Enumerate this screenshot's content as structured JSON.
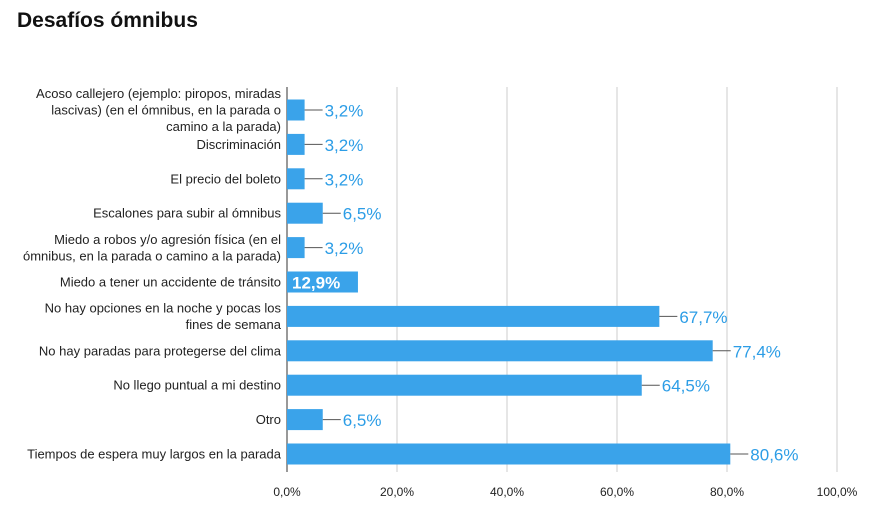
{
  "chart_data": {
    "type": "bar",
    "orientation": "horizontal",
    "title": "Desafíos ómnibus",
    "xlabel": "",
    "ylabel": "",
    "xlim": [
      0,
      100
    ],
    "grid": true,
    "bar_color": "#3aa3ea",
    "label_color": "#2c9de6",
    "inside_label_color": "#ffffff",
    "categories": [
      "Acoso callejero (ejemplo: piropos, miradas lascivas) (en el ómnibus, en la parada o camino a la parada)",
      "Discriminación",
      "El precio del boleto",
      "Escalones para subir al ómnibus",
      "Miedo a robos y/o agresión física (en el ómnibus, en la parada o camino a la parada)",
      "Miedo a tener un accidente de tránsito",
      "No hay opciones en la noche y pocas los fines de semana",
      "No hay paradas para protegerse del clima",
      "No llego puntual a mi destino",
      "Otro",
      "Tiempos de espera muy largos en la parada"
    ],
    "category_lines": [
      [
        "Acoso callejero (ejemplo: piropos, miradas",
        "lascivas) (en el ómnibus, en la parada o",
        "camino a la parada)"
      ],
      [
        "Discriminación"
      ],
      [
        "El precio del boleto"
      ],
      [
        "Escalones para subir al ómnibus"
      ],
      [
        "Miedo a robos y/o agresión física (en el",
        "ómnibus, en la parada o camino a la parada)"
      ],
      [
        "Miedo a tener un accidente de tránsito"
      ],
      [
        "No hay opciones en la noche y pocas los",
        "fines de semana"
      ],
      [
        "No hay paradas para protegerse del clima"
      ],
      [
        "No llego puntual a mi destino"
      ],
      [
        "Otro"
      ],
      [
        "Tiempos de espera muy largos en la parada"
      ]
    ],
    "values": [
      3.2,
      3.2,
      3.2,
      6.5,
      3.2,
      12.9,
      67.7,
      77.4,
      64.5,
      6.5,
      80.6
    ],
    "value_labels": [
      "3,2%",
      "3,2%",
      "3,2%",
      "6,5%",
      "3,2%",
      "12,9%",
      "67,7%",
      "77,4%",
      "64,5%",
      "6,5%",
      "80,6%"
    ],
    "label_inside": [
      false,
      false,
      false,
      false,
      false,
      true,
      false,
      false,
      false,
      false,
      false
    ],
    "ticks": [
      0,
      20,
      40,
      60,
      80,
      100
    ],
    "tick_labels": [
      "0,0%",
      "20,0%",
      "40,0%",
      "60,0%",
      "80,0%",
      "100,0%"
    ]
  }
}
